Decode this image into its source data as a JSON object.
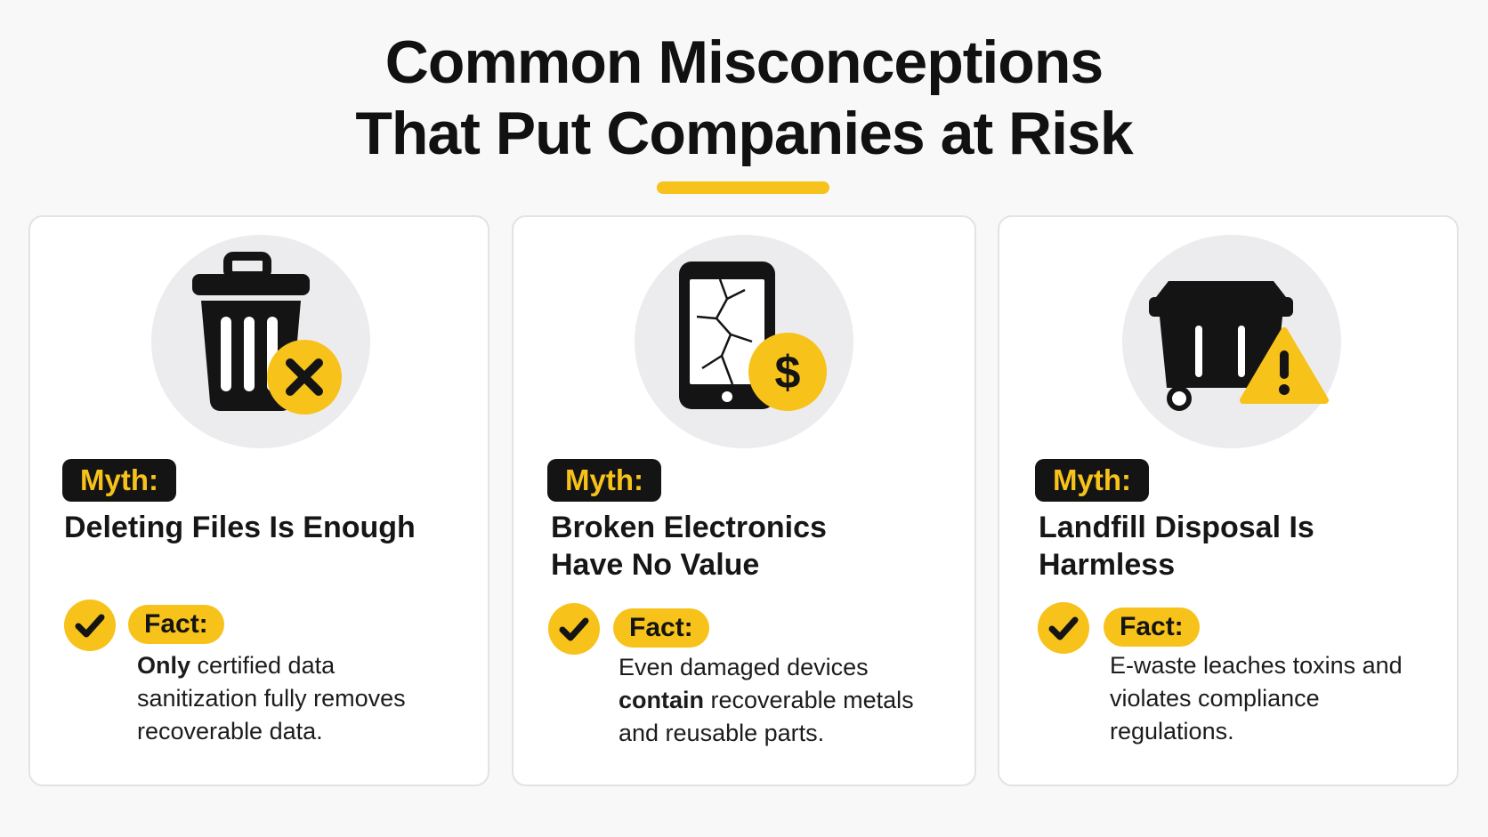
{
  "title": {
    "line1": "Common Misconceptions",
    "line2": "That Put Companies at Risk"
  },
  "colors": {
    "accent": "#f7c21a",
    "dark": "#141414",
    "icon_bg": "#ececef",
    "card_border": "#e3e3e3"
  },
  "cards": [
    {
      "icon": "trash-can-x-icon",
      "myth_label": "Myth:",
      "myth_line1": "Deleting Files Is Enough",
      "myth_line2": "",
      "fact_label": "Fact:",
      "fact_bold": "Only",
      "fact_rest": " certified data sanitization fully removes recoverable data."
    },
    {
      "icon": "broken-phone-dollar-icon",
      "myth_label": "Myth:",
      "myth_line1": "Broken Electronics",
      "myth_line2": "Have No Value",
      "fact_label": "Fact:",
      "fact_pre": "Even damaged devices ",
      "fact_bold": "contain",
      "fact_rest": " recoverable metals and reusable parts."
    },
    {
      "icon": "dumpster-warning-icon",
      "myth_label": "Myth:",
      "myth_line1": "Landfill Disposal Is",
      "myth_line2": "Harmless",
      "fact_label": "Fact:",
      "fact_rest": "E-waste leaches toxins and violates compliance regulations."
    }
  ]
}
